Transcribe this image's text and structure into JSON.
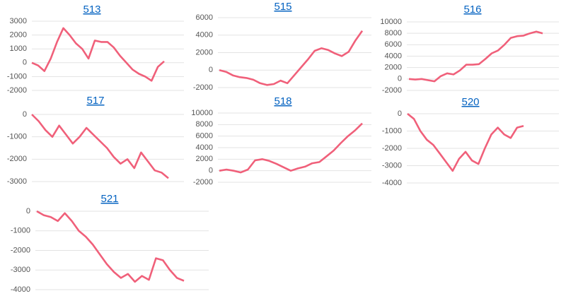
{
  "chart_data": [
    {
      "type": "line",
      "title": "513",
      "color": "#f0607a",
      "grid": true,
      "categories": [
        null,
        null,
        null,
        null,
        null,
        null,
        null,
        null,
        null,
        null,
        null,
        null,
        null,
        null,
        null,
        null,
        null,
        null,
        null,
        null,
        null,
        null
      ],
      "values": [
        0,
        -200,
        -600,
        300,
        1500,
        2500,
        2000,
        1400,
        1000,
        300,
        1600,
        1500,
        1500,
        1100,
        500,
        0,
        -500,
        -800,
        -1000,
        -1300,
        -300,
        100
      ],
      "ylim": [
        -2000,
        3000
      ],
      "yticks": [
        -2000,
        -1000,
        0,
        1000,
        2000,
        3000
      ]
    },
    {
      "type": "line",
      "title": "515",
      "color": "#f0607a",
      "grid": true,
      "categories": [
        null,
        null,
        null,
        null,
        null,
        null,
        null,
        null,
        null,
        null,
        null,
        null,
        null,
        null,
        null,
        null,
        null,
        null,
        null,
        null,
        null,
        null
      ],
      "values": [
        0,
        -200,
        -600,
        -800,
        -900,
        -1100,
        -1500,
        -1700,
        -1600,
        -1200,
        -1500,
        -600,
        300,
        1200,
        2200,
        2500,
        2300,
        1900,
        1600,
        2100,
        3400,
        4500
      ],
      "ylim": [
        -2000,
        6000
      ],
      "yticks": [
        -2000,
        0,
        2000,
        4000,
        6000
      ]
    },
    {
      "type": "line",
      "title": "516",
      "color": "#f0607a",
      "grid": true,
      "categories": [
        null,
        null,
        null,
        null,
        null,
        null,
        null,
        null,
        null,
        null,
        null,
        null,
        null,
        null,
        null,
        null,
        null,
        null,
        null,
        null,
        null,
        null
      ],
      "values": [
        0,
        -100,
        0,
        -200,
        -400,
        500,
        1000,
        800,
        1500,
        2500,
        2500,
        2600,
        3500,
        4500,
        5000,
        6000,
        7200,
        7500,
        7600,
        8000,
        8300,
        8000
      ],
      "ylim": [
        -2000,
        10000
      ],
      "yticks": [
        -2000,
        0,
        2000,
        4000,
        6000,
        8000,
        10000
      ]
    },
    {
      "type": "line",
      "title": "517",
      "color": "#f0607a",
      "grid": true,
      "categories": [
        null,
        null,
        null,
        null,
        null,
        null,
        null,
        null,
        null,
        null,
        null,
        null,
        null,
        null,
        null,
        null,
        null,
        null,
        null,
        null,
        null
      ],
      "values": [
        0,
        -300,
        -700,
        -1000,
        -500,
        -900,
        -1300,
        -1000,
        -600,
        -900,
        -1200,
        -1500,
        -1900,
        -2200,
        -2000,
        -2400,
        -1700,
        -2100,
        -2500,
        -2600,
        -2850
      ],
      "ylim": [
        -3000,
        0
      ],
      "yticks": [
        -3000,
        -2000,
        -1000,
        0
      ]
    },
    {
      "type": "line",
      "title": "518",
      "color": "#f0607a",
      "grid": true,
      "categories": [
        null,
        null,
        null,
        null,
        null,
        null,
        null,
        null,
        null,
        null,
        null,
        null,
        null,
        null,
        null,
        null,
        null,
        null,
        null,
        null,
        null
      ],
      "values": [
        0,
        200,
        0,
        -300,
        200,
        1800,
        2000,
        1700,
        1200,
        600,
        0,
        400,
        700,
        1300,
        1500,
        2500,
        3500,
        4800,
        6000,
        7000,
        8200
      ],
      "ylim": [
        -2000,
        10000
      ],
      "yticks": [
        -2000,
        0,
        2000,
        4000,
        6000,
        8000,
        10000
      ]
    },
    {
      "type": "line",
      "title": "520",
      "color": "#f0607a",
      "grid": true,
      "categories": [
        null,
        null,
        null,
        null,
        null,
        null,
        null,
        null,
        null,
        null,
        null,
        null,
        null,
        null,
        null,
        null,
        null,
        null,
        null
      ],
      "values": [
        0,
        -300,
        -1000,
        -1500,
        -1800,
        -2300,
        -2800,
        -3300,
        -2600,
        -2200,
        -2700,
        -2900,
        -2000,
        -1200,
        -800,
        -1200,
        -1400,
        -800,
        -700
      ],
      "ylim": [
        -4000,
        0
      ],
      "yticks": [
        -4000,
        -3000,
        -2000,
        -1000,
        0
      ]
    },
    {
      "type": "line",
      "title": "521",
      "color": "#f0607a",
      "grid": true,
      "categories": [
        null,
        null,
        null,
        null,
        null,
        null,
        null,
        null,
        null,
        null,
        null,
        null,
        null,
        null,
        null,
        null,
        null,
        null,
        null,
        null,
        null,
        null
      ],
      "values": [
        0,
        -200,
        -300,
        -500,
        -100,
        -500,
        -1000,
        -1300,
        -1700,
        -2200,
        -2700,
        -3100,
        -3400,
        -3200,
        -3600,
        -3300,
        -3500,
        -2400,
        -2500,
        -3000,
        -3400,
        -3550
      ],
      "ylim": [
        -4000,
        0
      ],
      "yticks": [
        -4000,
        -3000,
        -2000,
        -1000,
        0
      ]
    }
  ]
}
